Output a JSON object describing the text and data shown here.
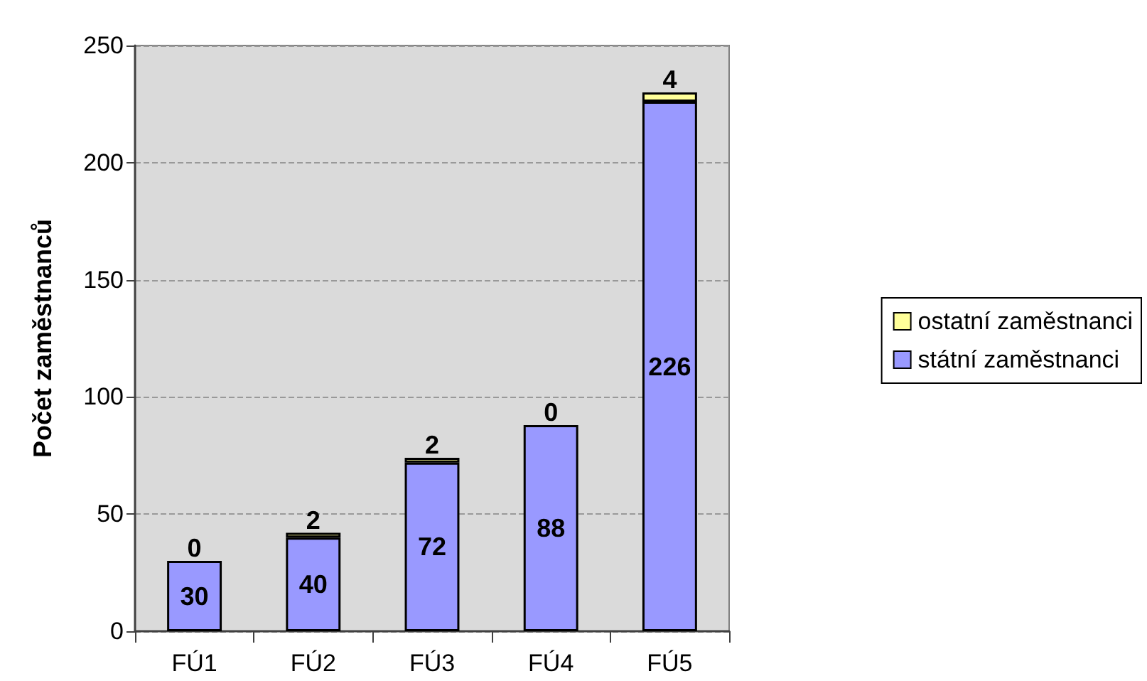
{
  "chart_data": {
    "type": "bar",
    "stacked": true,
    "ylabel": "Počet zaměstnanců",
    "categories": [
      "FÚ1",
      "FÚ2",
      "FÚ3",
      "FÚ4",
      "FÚ5"
    ],
    "series": [
      {
        "name": "státní zaměstnanci",
        "color": "#9999ff",
        "values": [
          30,
          40,
          72,
          88,
          226
        ]
      },
      {
        "name": "ostatní zaměstnanci",
        "color": "#ffff99",
        "values": [
          0,
          2,
          2,
          0,
          4
        ]
      }
    ],
    "ylim": [
      0,
      250
    ],
    "yticks": [
      0,
      50,
      100,
      150,
      200,
      250
    ],
    "grid": "y",
    "legend": "right",
    "data_labels": true
  }
}
